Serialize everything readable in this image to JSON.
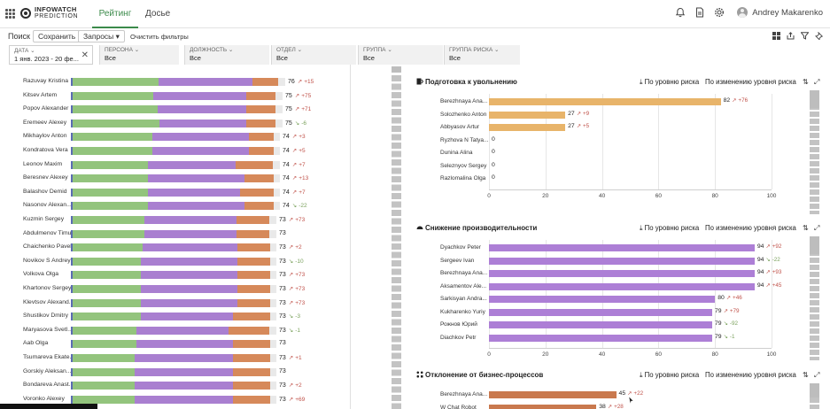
{
  "app": {
    "logo_line1": "INFOWATCH",
    "logo_line2": "PREDICTION",
    "tabs": [
      {
        "label": "Рейтинг",
        "active": true
      },
      {
        "label": "Досье",
        "active": false
      }
    ],
    "user_name": "Andrey Makarenko"
  },
  "toolbar": {
    "search_label": "Поиск",
    "save_label": "Сохранить",
    "requests_label": "Запросы ▾",
    "clear_label": "Очистить фильтры"
  },
  "filters": [
    {
      "label": "ДАТА ⌄",
      "value": "1 янв. 2023 - 20 фе..."
    },
    {
      "label": "ПЕРСОНА ⌄",
      "value": "Все"
    },
    {
      "label": "ДОЛЖНОСТЬ ⌄",
      "value": "Все"
    },
    {
      "label": "ОТДЕЛ ⌄",
      "value": "Все"
    },
    {
      "label": "ГРУППА ⌄",
      "value": "Все"
    },
    {
      "label": "ГРУППА РИСКА ⌄",
      "value": "Все"
    }
  ],
  "colors": {
    "green": "#93c47d",
    "purple": "#a97fd0",
    "orange": "#d6895a",
    "light": "#e9e9e9",
    "sand": "#e8b46a",
    "violet": "#ad7fd6",
    "brown": "#c9794e",
    "up": "#c0524a",
    "down": "#7aa15c"
  },
  "rating_rows": [
    {
      "name": "Razuvay Kristina",
      "score": 76,
      "delta": "+15",
      "dir": "up",
      "green": 0.4,
      "purple": 0.44,
      "orange": 0.12
    },
    {
      "name": "Kitsev Artem",
      "score": 75,
      "delta": "+75",
      "dir": "up",
      "green": 0.38,
      "purple": 0.44,
      "orange": 0.14
    },
    {
      "name": "Popov Alexander",
      "score": 75,
      "delta": "+71",
      "dir": "up",
      "green": 0.4,
      "purple": 0.42,
      "orange": 0.14
    },
    {
      "name": "Eremeev Alexey",
      "score": 75,
      "delta": "-6",
      "dir": "down",
      "green": 0.41,
      "purple": 0.41,
      "orange": 0.14
    },
    {
      "name": "Mikhaylov Anton",
      "score": 74,
      "delta": "+3",
      "dir": "up",
      "green": 0.38,
      "purple": 0.46,
      "orange": 0.12
    },
    {
      "name": "Kondratova Vera",
      "score": 74,
      "delta": "+5",
      "dir": "up",
      "green": 0.38,
      "purple": 0.46,
      "orange": 0.12
    },
    {
      "name": "Leonov Maxim",
      "score": 74,
      "delta": "+7",
      "dir": "up",
      "green": 0.36,
      "purple": 0.42,
      "orange": 0.18
    },
    {
      "name": "Beresnev Alexey",
      "score": 74,
      "delta": "+13",
      "dir": "up",
      "green": 0.36,
      "purple": 0.46,
      "orange": 0.14
    },
    {
      "name": "Balashov Demid",
      "score": 74,
      "delta": "+7",
      "dir": "up",
      "green": 0.36,
      "purple": 0.44,
      "orange": 0.16
    },
    {
      "name": "Nasonov Alexan...",
      "score": 74,
      "delta": "-22",
      "dir": "down",
      "green": 0.36,
      "purple": 0.46,
      "orange": 0.14
    },
    {
      "name": "Kuzmin Sergey",
      "score": 73,
      "delta": "+73",
      "dir": "up",
      "green": 0.35,
      "purple": 0.45,
      "orange": 0.16
    },
    {
      "name": "Abdulmenov Timur",
      "score": 73,
      "delta": "",
      "dir": "",
      "green": 0.35,
      "purple": 0.45,
      "orange": 0.16
    },
    {
      "name": "Chaichenko Pavel",
      "score": 73,
      "delta": "+2",
      "dir": "up",
      "green": 0.34,
      "purple": 0.46,
      "orange": 0.16
    },
    {
      "name": "Novikov S Andrey",
      "score": 73,
      "delta": "-10",
      "dir": "down",
      "green": 0.33,
      "purple": 0.47,
      "orange": 0.16
    },
    {
      "name": "Volkova Olga",
      "score": 73,
      "delta": "+73",
      "dir": "up",
      "green": 0.33,
      "purple": 0.47,
      "orange": 0.16
    },
    {
      "name": "Khartonov Sergey",
      "score": 73,
      "delta": "+73",
      "dir": "up",
      "green": 0.33,
      "purple": 0.47,
      "orange": 0.16
    },
    {
      "name": "Klevtsov Alexand...",
      "score": 73,
      "delta": "+73",
      "dir": "up",
      "green": 0.33,
      "purple": 0.47,
      "orange": 0.16
    },
    {
      "name": "Shustikov Dmitry",
      "score": 73,
      "delta": "-3",
      "dir": "down",
      "green": 0.33,
      "purple": 0.45,
      "orange": 0.18
    },
    {
      "name": "Maryasova Svetl...",
      "score": 73,
      "delta": "-1",
      "dir": "down",
      "green": 0.31,
      "purple": 0.45,
      "orange": 0.2
    },
    {
      "name": "Aab Olga",
      "score": 73,
      "delta": "",
      "dir": "",
      "green": 0.31,
      "purple": 0.47,
      "orange": 0.18
    },
    {
      "name": "Tsumareva Ekate...",
      "score": 73,
      "delta": "+1",
      "dir": "up",
      "green": 0.3,
      "purple": 0.48,
      "orange": 0.18
    },
    {
      "name": "Gorskiy Aleksan...",
      "score": 73,
      "delta": "",
      "dir": "",
      "green": 0.3,
      "purple": 0.48,
      "orange": 0.18
    },
    {
      "name": "Bondareva Anast...",
      "score": 73,
      "delta": "+2",
      "dir": "up",
      "green": 0.3,
      "purple": 0.48,
      "orange": 0.18
    },
    {
      "name": "Voronko Alexey",
      "score": 73,
      "delta": "+69",
      "dir": "up",
      "green": 0.3,
      "purple": 0.48,
      "orange": 0.18
    }
  ],
  "cards": [
    {
      "title": "Подготовка к увольнению",
      "sort_by_level": "⤓ По уровню риска",
      "sort_by_change": "По изменению уровня риска",
      "color": "#e8b46a",
      "ticks": [
        0,
        20,
        40,
        60,
        80,
        100
      ],
      "rows": [
        {
          "name": "Berezhnaya Ana...",
          "value": 82,
          "delta": "+76",
          "dir": "up"
        },
        {
          "name": "Solozhenko Anton",
          "value": 27,
          "delta": "+9",
          "dir": "up"
        },
        {
          "name": "Abbyasov Artur",
          "value": 27,
          "delta": "+5",
          "dir": "up"
        },
        {
          "name": "Ryzhova N Tatya...",
          "value": 0,
          "delta": "",
          "dir": ""
        },
        {
          "name": "Dunina Alina",
          "value": 0,
          "delta": "",
          "dir": ""
        },
        {
          "name": "Seleznyov Sergey",
          "value": 0,
          "delta": "",
          "dir": ""
        },
        {
          "name": "Razlomalina Olga",
          "value": 0,
          "delta": "",
          "dir": ""
        }
      ]
    },
    {
      "title": "Снижение производительности",
      "sort_by_level": "⤓ По уровню риска",
      "sort_by_change": "По изменению уровня риска",
      "color": "#ad7fd6",
      "ticks": [
        0,
        20,
        40,
        60,
        80,
        100
      ],
      "rows": [
        {
          "name": "Dyachkov Peter",
          "value": 94,
          "delta": "+92",
          "dir": "up"
        },
        {
          "name": "Sergeev Ivan",
          "value": 94,
          "delta": "-22",
          "dir": "down"
        },
        {
          "name": "Berezhnaya Ana...",
          "value": 94,
          "delta": "+93",
          "dir": "up"
        },
        {
          "name": "Aksamentov Ale...",
          "value": 94,
          "delta": "+45",
          "dir": "up"
        },
        {
          "name": "Sarkisyan Andra...",
          "value": 80,
          "delta": "+46",
          "dir": "up"
        },
        {
          "name": "Kukharenko Yuriy",
          "value": 79,
          "delta": "+79",
          "dir": "up"
        },
        {
          "name": "Рожнов Юрий",
          "value": 79,
          "delta": "-92",
          "dir": "down"
        },
        {
          "name": "Diachkov Petr",
          "value": 79,
          "delta": "-1",
          "dir": "down"
        }
      ]
    },
    {
      "title": "Отклонение от бизнес-процессов",
      "sort_by_level": "⤓ По уровню риска",
      "sort_by_change": "По изменению уровня риска",
      "color": "#c9794e",
      "ticks": [],
      "rows": [
        {
          "name": "Berezhnaya Ana...",
          "value": 45,
          "delta": "+22",
          "dir": "up"
        },
        {
          "name": "W Chat Robot",
          "value": 38,
          "delta": "+28",
          "dir": "up"
        }
      ]
    }
  ]
}
